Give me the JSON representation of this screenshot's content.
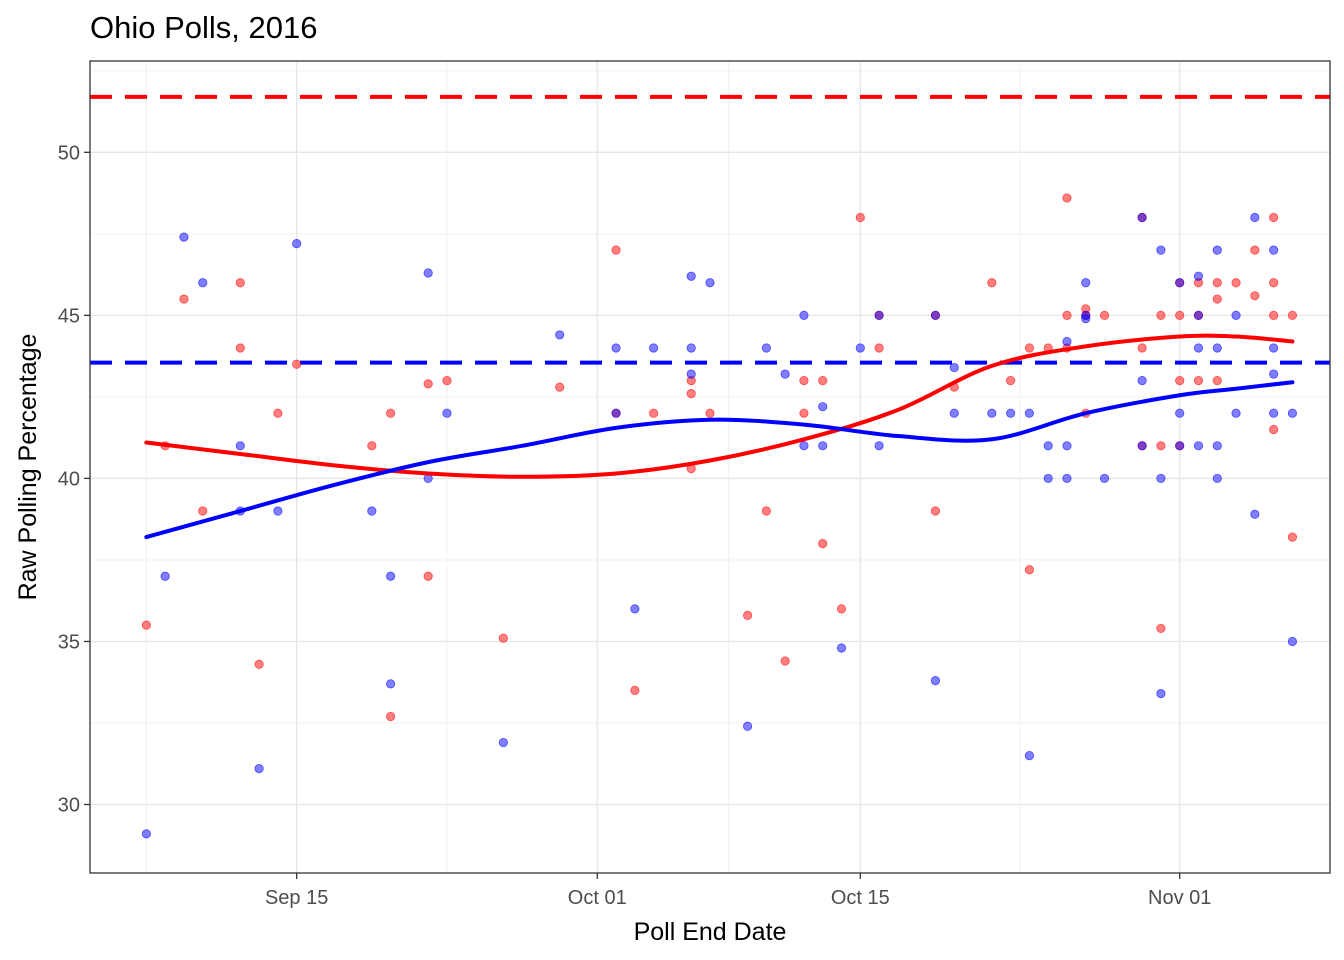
{
  "chart_data": {
    "type": "scatter",
    "title": "Ohio Polls, 2016",
    "xlabel": "Poll End Date",
    "ylabel": "Raw Polling Percentage",
    "x_ticks": [
      "Sep 15",
      "Oct 01",
      "Oct 15",
      "Nov 01"
    ],
    "y_ticks": [
      "30",
      "35",
      "40",
      "45",
      "50"
    ],
    "xlim": [
      "2016-09-04",
      "2016-11-09"
    ],
    "ylim": [
      27.9,
      52.8
    ],
    "grid": true,
    "colors": {
      "trump": "#ff0000",
      "clinton": "#0000ff"
    },
    "reference_lines": [
      {
        "color": "#ff0000",
        "y": 51.7,
        "style": "dashed"
      },
      {
        "color": "#0000ff",
        "y": 43.55,
        "style": "dashed"
      }
    ],
    "series": [
      {
        "color": "#ff0000",
        "points": [
          [
            "2016-09-07",
            35.5
          ],
          [
            "2016-09-08",
            41
          ],
          [
            "2016-09-09",
            45.5
          ],
          [
            "2016-09-10",
            39
          ],
          [
            "2016-09-12",
            46
          ],
          [
            "2016-09-12",
            44
          ],
          [
            "2016-09-13",
            34.3
          ],
          [
            "2016-09-14",
            42
          ],
          [
            "2016-09-15",
            43.5
          ],
          [
            "2016-09-19",
            41
          ],
          [
            "2016-09-20",
            42
          ],
          [
            "2016-09-20",
            32.7
          ],
          [
            "2016-09-22",
            42.9
          ],
          [
            "2016-09-22",
            37
          ],
          [
            "2016-09-23",
            43
          ],
          [
            "2016-09-26",
            35.1
          ],
          [
            "2016-09-29",
            42.8
          ],
          [
            "2016-10-02",
            47
          ],
          [
            "2016-10-02",
            42
          ],
          [
            "2016-10-03",
            33.5
          ],
          [
            "2016-10-04",
            42
          ],
          [
            "2016-10-06",
            43
          ],
          [
            "2016-10-06",
            42.6
          ],
          [
            "2016-10-06",
            40.3
          ],
          [
            "2016-10-07",
            42
          ],
          [
            "2016-10-09",
            35.8
          ],
          [
            "2016-10-10",
            39
          ],
          [
            "2016-10-11",
            34.4
          ],
          [
            "2016-10-12",
            43
          ],
          [
            "2016-10-12",
            42
          ],
          [
            "2016-10-13",
            43
          ],
          [
            "2016-10-13",
            38
          ],
          [
            "2016-10-14",
            36
          ],
          [
            "2016-10-15",
            48
          ],
          [
            "2016-10-16",
            45
          ],
          [
            "2016-10-16",
            44
          ],
          [
            "2016-10-19",
            45
          ],
          [
            "2016-10-19",
            39
          ],
          [
            "2016-10-20",
            42.8
          ],
          [
            "2016-10-22",
            46
          ],
          [
            "2016-10-23",
            43
          ],
          [
            "2016-10-24",
            44
          ],
          [
            "2016-10-24",
            37.2
          ],
          [
            "2016-10-25",
            44
          ],
          [
            "2016-10-26",
            48.6
          ],
          [
            "2016-10-26",
            45
          ],
          [
            "2016-10-26",
            44
          ],
          [
            "2016-10-27",
            45.2
          ],
          [
            "2016-10-27",
            45
          ],
          [
            "2016-10-27",
            42
          ],
          [
            "2016-10-28",
            45
          ],
          [
            "2016-10-30",
            48
          ],
          [
            "2016-10-30",
            44
          ],
          [
            "2016-10-30",
            41
          ],
          [
            "2016-10-31",
            45
          ],
          [
            "2016-10-31",
            41
          ],
          [
            "2016-10-31",
            35.4
          ],
          [
            "2016-11-01",
            46
          ],
          [
            "2016-11-01",
            45
          ],
          [
            "2016-11-01",
            43
          ],
          [
            "2016-11-01",
            41
          ],
          [
            "2016-11-02",
            46
          ],
          [
            "2016-11-02",
            45
          ],
          [
            "2016-11-02",
            43
          ],
          [
            "2016-11-03",
            46
          ],
          [
            "2016-11-03",
            45.5
          ],
          [
            "2016-11-03",
            43
          ],
          [
            "2016-11-04",
            46
          ],
          [
            "2016-11-05",
            47
          ],
          [
            "2016-11-05",
            45.6
          ],
          [
            "2016-11-06",
            48
          ],
          [
            "2016-11-06",
            46
          ],
          [
            "2016-11-06",
            45
          ],
          [
            "2016-11-06",
            41.5
          ],
          [
            "2016-11-07",
            45
          ],
          [
            "2016-11-07",
            38.2
          ]
        ]
      },
      {
        "color": "#0000ff",
        "points": [
          [
            "2016-09-07",
            29.1
          ],
          [
            "2016-09-08",
            37
          ],
          [
            "2016-09-09",
            47.4
          ],
          [
            "2016-09-10",
            46
          ],
          [
            "2016-09-12",
            41
          ],
          [
            "2016-09-12",
            39
          ],
          [
            "2016-09-13",
            31.1
          ],
          [
            "2016-09-14",
            39
          ],
          [
            "2016-09-15",
            47.2
          ],
          [
            "2016-09-19",
            39
          ],
          [
            "2016-09-20",
            37
          ],
          [
            "2016-09-20",
            33.7
          ],
          [
            "2016-09-22",
            46.3
          ],
          [
            "2016-09-22",
            40
          ],
          [
            "2016-09-23",
            42
          ],
          [
            "2016-09-26",
            31.9
          ],
          [
            "2016-09-29",
            44.4
          ],
          [
            "2016-10-02",
            44
          ],
          [
            "2016-10-02",
            42
          ],
          [
            "2016-10-03",
            36
          ],
          [
            "2016-10-04",
            44
          ],
          [
            "2016-10-06",
            46.2
          ],
          [
            "2016-10-06",
            44
          ],
          [
            "2016-10-06",
            43.2
          ],
          [
            "2016-10-07",
            46
          ],
          [
            "2016-10-09",
            32.4
          ],
          [
            "2016-10-10",
            44
          ],
          [
            "2016-10-11",
            43.2
          ],
          [
            "2016-10-12",
            45
          ],
          [
            "2016-10-12",
            41
          ],
          [
            "2016-10-13",
            42.2
          ],
          [
            "2016-10-13",
            41
          ],
          [
            "2016-10-14",
            34.8
          ],
          [
            "2016-10-15",
            44
          ],
          [
            "2016-10-16",
            45
          ],
          [
            "2016-10-16",
            41
          ],
          [
            "2016-10-19",
            45
          ],
          [
            "2016-10-19",
            33.8
          ],
          [
            "2016-10-20",
            43.4
          ],
          [
            "2016-10-20",
            42
          ],
          [
            "2016-10-22",
            42
          ],
          [
            "2016-10-23",
            42
          ],
          [
            "2016-10-24",
            42
          ],
          [
            "2016-10-24",
            31.5
          ],
          [
            "2016-10-25",
            41
          ],
          [
            "2016-10-25",
            40
          ],
          [
            "2016-10-26",
            44.2
          ],
          [
            "2016-10-26",
            41
          ],
          [
            "2016-10-26",
            40
          ],
          [
            "2016-10-27",
            46
          ],
          [
            "2016-10-27",
            45
          ],
          [
            "2016-10-27",
            44.9
          ],
          [
            "2016-10-28",
            40
          ],
          [
            "2016-10-30",
            48
          ],
          [
            "2016-10-30",
            43
          ],
          [
            "2016-10-30",
            41
          ],
          [
            "2016-10-31",
            47
          ],
          [
            "2016-10-31",
            40
          ],
          [
            "2016-10-31",
            33.4
          ],
          [
            "2016-11-01",
            46
          ],
          [
            "2016-11-01",
            42
          ],
          [
            "2016-11-01",
            41
          ],
          [
            "2016-11-02",
            46.2
          ],
          [
            "2016-11-02",
            45
          ],
          [
            "2016-11-02",
            44
          ],
          [
            "2016-11-02",
            41
          ],
          [
            "2016-11-03",
            47
          ],
          [
            "2016-11-03",
            44
          ],
          [
            "2016-11-03",
            41
          ],
          [
            "2016-11-03",
            40
          ],
          [
            "2016-11-04",
            45
          ],
          [
            "2016-11-04",
            42
          ],
          [
            "2016-11-05",
            48
          ],
          [
            "2016-11-05",
            38.9
          ],
          [
            "2016-11-06",
            47
          ],
          [
            "2016-11-06",
            44
          ],
          [
            "2016-11-06",
            43.2
          ],
          [
            "2016-11-06",
            42
          ],
          [
            "2016-11-07",
            42
          ],
          [
            "2016-11-07",
            35
          ]
        ]
      }
    ],
    "smooth_lines": [
      {
        "color": "#ff0000",
        "points": [
          [
            "2016-09-07",
            41.1
          ],
          [
            "2016-09-12",
            40.75
          ],
          [
            "2016-09-17",
            40.4
          ],
          [
            "2016-09-22",
            40.15
          ],
          [
            "2016-09-27",
            40.05
          ],
          [
            "2016-10-02",
            40.15
          ],
          [
            "2016-10-07",
            40.55
          ],
          [
            "2016-10-12",
            41.2
          ],
          [
            "2016-10-17",
            42.1
          ],
          [
            "2016-10-22",
            43.45
          ],
          [
            "2016-10-27",
            44.05
          ],
          [
            "2016-11-01",
            44.35
          ],
          [
            "2016-11-04",
            44.35
          ],
          [
            "2016-11-07",
            44.2
          ]
        ]
      },
      {
        "color": "#0000ff",
        "points": [
          [
            "2016-09-07",
            38.2
          ],
          [
            "2016-09-12",
            39.0
          ],
          [
            "2016-09-17",
            39.8
          ],
          [
            "2016-09-22",
            40.5
          ],
          [
            "2016-09-27",
            41.0
          ],
          [
            "2016-10-02",
            41.55
          ],
          [
            "2016-10-07",
            41.8
          ],
          [
            "2016-10-12",
            41.65
          ],
          [
            "2016-10-17",
            41.3
          ],
          [
            "2016-10-22",
            41.2
          ],
          [
            "2016-10-27",
            42.0
          ],
          [
            "2016-11-01",
            42.55
          ],
          [
            "2016-11-04",
            42.75
          ],
          [
            "2016-11-07",
            42.95
          ]
        ]
      }
    ]
  }
}
